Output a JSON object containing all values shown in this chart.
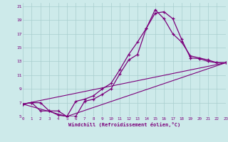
{
  "xlabel": "Windchill (Refroidissement éolien,°C)",
  "xlim": [
    0,
    23
  ],
  "ylim": [
    5,
    21.5
  ],
  "background_color": "#cdeaea",
  "line_color": "#7b007b",
  "grid_color": "#a8cece",
  "curve1_x": [
    0,
    1,
    2,
    3,
    4,
    5,
    6,
    7,
    8,
    9,
    10,
    11,
    12,
    13,
    14,
    15,
    16,
    17,
    18,
    19,
    20,
    21,
    22,
    23
  ],
  "curve1_y": [
    6.8,
    7.0,
    7.0,
    5.8,
    5.8,
    5.0,
    5.0,
    7.2,
    7.5,
    8.2,
    9.0,
    11.2,
    13.2,
    14.0,
    17.8,
    20.0,
    20.2,
    19.2,
    16.2,
    13.5,
    13.4,
    13.0,
    12.8,
    12.8
  ],
  "curve2_x": [
    0,
    1,
    2,
    3,
    4,
    5,
    6,
    7,
    8,
    9,
    10,
    11,
    12,
    13,
    14,
    15,
    16,
    17,
    18,
    19,
    20,
    21,
    22,
    23
  ],
  "curve2_y": [
    6.8,
    7.0,
    5.8,
    5.8,
    5.2,
    5.0,
    7.2,
    7.5,
    8.0,
    9.0,
    9.8,
    11.8,
    14.0,
    15.8,
    17.8,
    20.5,
    19.2,
    17.0,
    15.8,
    13.8,
    13.5,
    13.2,
    12.8,
    12.8
  ],
  "curve3_x": [
    0,
    23
  ],
  "curve3_y": [
    6.8,
    12.8
  ],
  "curve4_x": [
    0,
    5,
    23
  ],
  "curve4_y": [
    6.8,
    5.0,
    12.8
  ],
  "yticks": [
    5,
    7,
    9,
    11,
    13,
    15,
    17,
    19,
    21
  ],
  "xticks": [
    0,
    1,
    2,
    3,
    4,
    5,
    6,
    7,
    8,
    9,
    10,
    11,
    12,
    13,
    14,
    15,
    16,
    17,
    18,
    19,
    20,
    21,
    22,
    23
  ]
}
